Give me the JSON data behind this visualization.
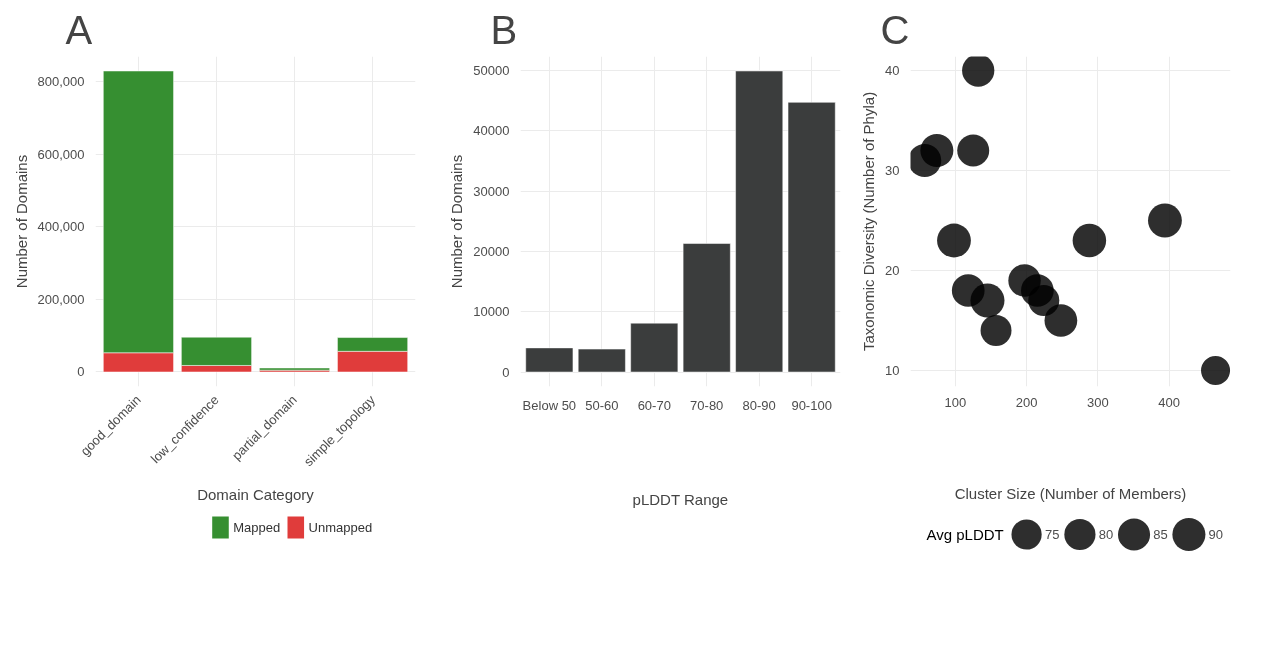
{
  "chart_data": [
    {
      "type": "bar",
      "title": "A",
      "xlabel": "Domain Category",
      "ylabel": "Number of Domains",
      "categories": [
        "good_domain",
        "low_confidence",
        "partial_domain",
        "simple_topology"
      ],
      "stacked": true,
      "series": [
        {
          "name": "Unmapped",
          "color": "#e03c3b",
          "values": [
            53000,
            18000,
            5000,
            57000
          ]
        },
        {
          "name": "Mapped",
          "color": "#368f31",
          "values": [
            777000,
            78000,
            6000,
            38000
          ]
        }
      ],
      "ylim": [
        -40000,
        870000
      ],
      "yticks": [
        0,
        {
          "value": 200000,
          "label": "200,000"
        },
        {
          "value": 400000,
          "label": "400,000"
        },
        {
          "value": 600000,
          "label": "600,000"
        },
        {
          "value": 800000,
          "label": "800,000"
        }
      ],
      "grid": true,
      "legend": "bottom"
    },
    {
      "type": "bar",
      "title": "B",
      "xlabel": "pLDDT Range",
      "ylabel": "Number of Domains",
      "categories": [
        "Below 50",
        "50-60",
        "60-70",
        "70-80",
        "80-90",
        "90-100"
      ],
      "values": [
        4000,
        3800,
        8100,
        21300,
        49900,
        44700
      ],
      "color": "#3b3d3d",
      "ylim": [
        -2400,
        52300
      ],
      "yticks": [
        0,
        10000,
        20000,
        30000,
        40000,
        50000
      ],
      "grid": true
    },
    {
      "type": "bubble",
      "title": "C",
      "xlabel": "Cluster Size (Number of Members)",
      "ylabel": "Taxonomic Diversity (Number of Phyla)",
      "legend_title": "Avg pLDDT",
      "x": [
        132,
        74,
        57,
        125,
        98,
        288,
        394,
        118,
        145,
        157,
        197,
        215,
        224,
        248,
        465
      ],
      "values": [
        40,
        32,
        31,
        32,
        23,
        23,
        25,
        18,
        17,
        14,
        19,
        18,
        17,
        15,
        10
      ],
      "sizes": [
        85.8,
        89.8,
        89.8,
        84.3,
        94.3,
        92.5,
        94.3,
        88.2,
        95.2,
        78.9,
        86.6,
        88.2,
        79.4,
        88.2,
        69.4
      ],
      "size_legend": [
        75,
        80,
        85,
        90
      ],
      "color": "#000000",
      "xlim": [
        37,
        486
      ],
      "xticks": [
        100,
        200,
        300,
        400
      ],
      "ylim": [
        8.4,
        41.4
      ],
      "yticks": [
        10,
        20,
        30,
        40
      ],
      "grid": true
    }
  ]
}
